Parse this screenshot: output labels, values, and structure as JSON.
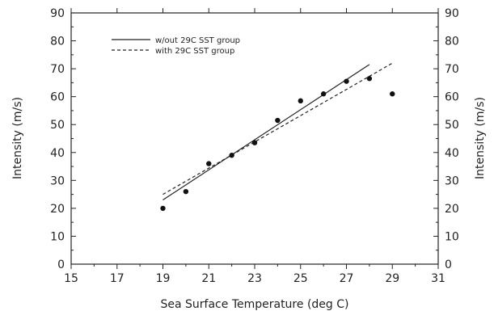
{
  "chart_data": {
    "type": "scatter",
    "title": "",
    "xlabel": "Sea Surface Temperature (deg C)",
    "ylabel": "Intensity (m/s)",
    "ylabel_right": "Intensity (m/s)",
    "xlim": [
      15,
      31
    ],
    "ylim": [
      0,
      90
    ],
    "xticks": [
      15,
      17,
      19,
      21,
      23,
      25,
      27,
      29,
      31
    ],
    "yticks": [
      0,
      10,
      20,
      30,
      40,
      50,
      60,
      70,
      80,
      90
    ],
    "grid": false,
    "legend_position": "top-left",
    "points": [
      {
        "x": 19,
        "y": 20
      },
      {
        "x": 20,
        "y": 26
      },
      {
        "x": 21,
        "y": 36
      },
      {
        "x": 22,
        "y": 39
      },
      {
        "x": 23,
        "y": 43.5
      },
      {
        "x": 24,
        "y": 51.5
      },
      {
        "x": 25,
        "y": 58.5
      },
      {
        "x": 26,
        "y": 61
      },
      {
        "x": 27,
        "y": 65.5
      },
      {
        "x": 28,
        "y": 66.5
      },
      {
        "x": 29,
        "y": 61
      }
    ],
    "series": [
      {
        "name": "w/out 29C SST group",
        "style": "solid",
        "x": [
          19,
          28
        ],
        "y": [
          23,
          71.5
        ]
      },
      {
        "name": "with 29C SST group",
        "style": "dashed",
        "x": [
          19,
          29
        ],
        "y": [
          25,
          72
        ]
      }
    ]
  }
}
